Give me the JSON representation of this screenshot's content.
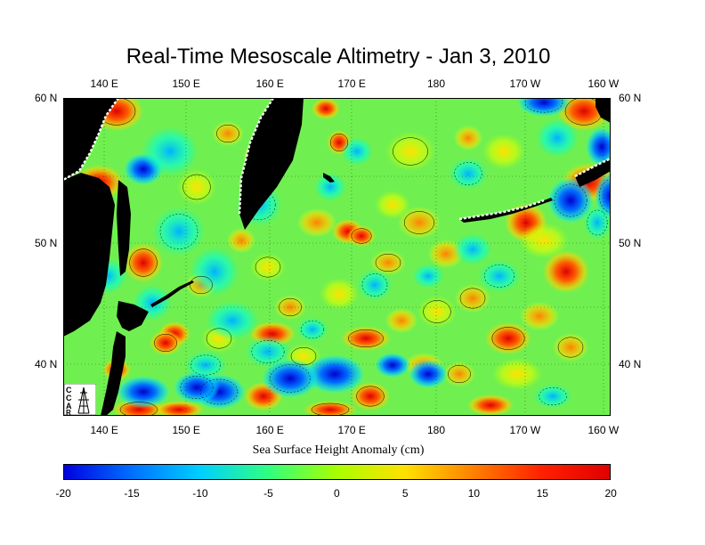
{
  "title": "Real-Time Mesoscale Altimetry - Jan 3, 2010",
  "longitude_labels": [
    "140 E",
    "150 E",
    "160 E",
    "170 E",
    "180",
    "170 W",
    "160 W"
  ],
  "latitude_labels": [
    "60 N",
    "50 N",
    "40 N"
  ],
  "colorbar": {
    "label": "Sea Surface Height Anomaly (cm)",
    "ticks": [
      "-20",
      "-15",
      "-10",
      "-5",
      "0",
      "5",
      "10",
      "15",
      "20"
    ],
    "colors": [
      "#0000e0",
      "#0070ff",
      "#00d0ff",
      "#30ff80",
      "#a8ff00",
      "#ffe000",
      "#ff8000",
      "#ff2000",
      "#e00000"
    ]
  },
  "map": {
    "land_color": "#000000",
    "grid": "dotted",
    "contours": "solid-positive, dashed-negative"
  },
  "logo": {
    "name": "CCAR"
  }
}
